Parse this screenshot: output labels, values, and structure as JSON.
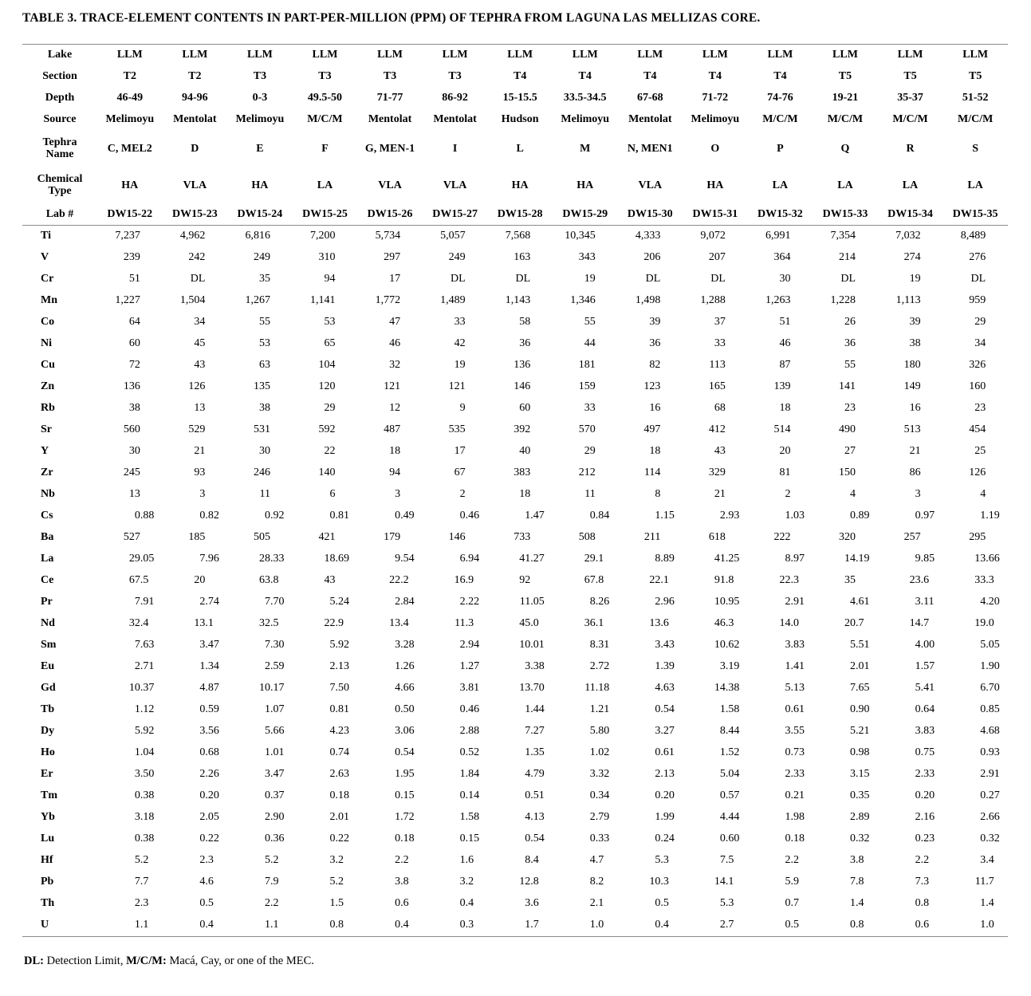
{
  "title": "TABLE 3. TRACE-ELEMENT CONTENTS IN PART-PER-MILLION (PPM) OF TEPHRA FROM LAGUNA LAS MELLIZAS CORE.",
  "table": {
    "header_rows": [
      {
        "label": "Lake",
        "values": [
          "LLM",
          "LLM",
          "LLM",
          "LLM",
          "LLM",
          "LLM",
          "LLM",
          "LLM",
          "LLM",
          "LLM",
          "LLM",
          "LLM",
          "LLM",
          "LLM"
        ]
      },
      {
        "label": "Section",
        "values": [
          "T2",
          "T2",
          "T3",
          "T3",
          "T3",
          "T3",
          "T4",
          "T4",
          "T4",
          "T4",
          "T4",
          "T5",
          "T5",
          "T5"
        ]
      },
      {
        "label": "Depth",
        "values": [
          "46-49",
          "94-96",
          "0-3",
          "49.5-50",
          "71-77",
          "86-92",
          "15-15.5",
          "33.5-34.5",
          "67-68",
          "71-72",
          "74-76",
          "19-21",
          "35-37",
          "51-52"
        ]
      },
      {
        "label": "Source",
        "values": [
          "Melimoyu",
          "Mentolat",
          "Melimoyu",
          "M/C/M",
          "Mentolat",
          "Mentolat",
          "Hudson",
          "Melimoyu",
          "Mentolat",
          "Melimoyu",
          "M/C/M",
          "M/C/M",
          "M/C/M",
          "M/C/M"
        ]
      },
      {
        "label": "Tephra\nName",
        "tall": true,
        "values": [
          "C, MEL2",
          "D",
          "E",
          "F",
          "G, MEN-1",
          "I",
          "L",
          "M",
          "N, MEN1",
          "O",
          "P",
          "Q",
          "R",
          "S"
        ]
      },
      {
        "label": "Chemical\nType",
        "tall": true,
        "values": [
          "HA",
          "VLA",
          "HA",
          "LA",
          "VLA",
          "VLA",
          "HA",
          "HA",
          "VLA",
          "HA",
          "LA",
          "LA",
          "LA",
          "LA"
        ]
      },
      {
        "label": "Lab #",
        "labrow": true,
        "values": [
          "DW15-22",
          "DW15-23",
          "DW15-24",
          "DW15-25",
          "DW15-26",
          "DW15-27",
          "DW15-28",
          "DW15-29",
          "DW15-30",
          "DW15-31",
          "DW15-32",
          "DW15-33",
          "DW15-34",
          "DW15-35"
        ]
      }
    ],
    "element_rows": [
      {
        "label": "Ti",
        "values": [
          "7,237",
          "4,962",
          "6,816",
          "7,200",
          "5,734",
          "5,057",
          "7,568",
          "10,345",
          "4,333",
          "9,072",
          "6,991",
          "7,354",
          "7,032",
          "8,489"
        ]
      },
      {
        "label": "V",
        "values": [
          "239",
          "242",
          "249",
          "310",
          "297",
          "249",
          "163",
          "343",
          "206",
          "207",
          "364",
          "214",
          "274",
          "276"
        ]
      },
      {
        "label": "Cr",
        "values": [
          "51",
          "DL",
          "35",
          "94",
          "17",
          "DL",
          "DL",
          "19",
          "DL",
          "DL",
          "30",
          "DL",
          "19",
          "DL"
        ]
      },
      {
        "label": "Mn",
        "values": [
          "1,227",
          "1,504",
          "1,267",
          "1,141",
          "1,772",
          "1,489",
          "1,143",
          "1,346",
          "1,498",
          "1,288",
          "1,263",
          "1,228",
          "1,113",
          "959"
        ]
      },
      {
        "label": "Co",
        "values": [
          "64",
          "34",
          "55",
          "53",
          "47",
          "33",
          "58",
          "55",
          "39",
          "37",
          "51",
          "26",
          "39",
          "29"
        ]
      },
      {
        "label": "Ni",
        "values": [
          "60",
          "45",
          "53",
          "65",
          "46",
          "42",
          "36",
          "44",
          "36",
          "33",
          "46",
          "36",
          "38",
          "34"
        ]
      },
      {
        "label": "Cu",
        "values": [
          "72",
          "43",
          "63",
          "104",
          "32",
          "19",
          "136",
          "181",
          "82",
          "113",
          "87",
          "55",
          "180",
          "326"
        ]
      },
      {
        "label": "Zn",
        "values": [
          "136",
          "126",
          "135",
          "120",
          "121",
          "121",
          "146",
          "159",
          "123",
          "165",
          "139",
          "141",
          "149",
          "160"
        ]
      },
      {
        "label": "Rb",
        "values": [
          "38",
          "13",
          "38",
          "29",
          "12",
          "9",
          "60",
          "33",
          "16",
          "68",
          "18",
          "23",
          "16",
          "23"
        ]
      },
      {
        "label": "Sr",
        "values": [
          "560",
          "529",
          "531",
          "592",
          "487",
          "535",
          "392",
          "570",
          "497",
          "412",
          "514",
          "490",
          "513",
          "454"
        ]
      },
      {
        "label": "Y",
        "values": [
          "30",
          "21",
          "30",
          "22",
          "18",
          "17",
          "40",
          "29",
          "18",
          "43",
          "20",
          "27",
          "21",
          "25"
        ]
      },
      {
        "label": "Zr",
        "values": [
          "245",
          "93",
          "246",
          "140",
          "94",
          "67",
          "383",
          "212",
          "114",
          "329",
          "81",
          "150",
          "86",
          "126"
        ]
      },
      {
        "label": "Nb",
        "values": [
          "13",
          "3",
          "11",
          "6",
          "3",
          "2",
          "18",
          "11",
          "8",
          "21",
          "2",
          "4",
          "3",
          "4"
        ]
      },
      {
        "label": "Cs",
        "values": [
          "0.88",
          "0.82",
          "0.92",
          "0.81",
          "0.49",
          "0.46",
          "1.47",
          "0.84",
          "1.15",
          "2.93",
          "1.03",
          "0.89",
          "0.97",
          "1.19"
        ]
      },
      {
        "label": "Ba",
        "values": [
          "527",
          "185",
          "505",
          "421",
          "179",
          "146",
          "733",
          "508",
          "211",
          "618",
          "222",
          "320",
          "257",
          "295"
        ]
      },
      {
        "label": "La",
        "values": [
          "29.05",
          "7.96",
          "28.33",
          "18.69",
          "9.54",
          "6.94",
          "41.27",
          "29.1",
          "8.89",
          "41.25",
          "8.97",
          "14.19",
          "9.85",
          "13.66"
        ]
      },
      {
        "label": "Ce",
        "values": [
          "67.5",
          "20",
          "63.8",
          "43",
          "22.2",
          "16.9",
          "92",
          "67.8",
          "22.1",
          "91.8",
          "22.3",
          "35",
          "23.6",
          "33.3"
        ]
      },
      {
        "label": "Pr",
        "values": [
          "7.91",
          "2.74",
          "7.70",
          "5.24",
          "2.84",
          "2.22",
          "11.05",
          "8.26",
          "2.96",
          "10.95",
          "2.91",
          "4.61",
          "3.11",
          "4.20"
        ]
      },
      {
        "label": "Nd",
        "values": [
          "32.4",
          "13.1",
          "32.5",
          "22.9",
          "13.4",
          "11.3",
          "45.0",
          "36.1",
          "13.6",
          "46.3",
          "14.0",
          "20.7",
          "14.7",
          "19.0"
        ]
      },
      {
        "label": "Sm",
        "values": [
          "7.63",
          "3.47",
          "7.30",
          "5.92",
          "3.28",
          "2.94",
          "10.01",
          "8.31",
          "3.43",
          "10.62",
          "3.83",
          "5.51",
          "4.00",
          "5.05"
        ]
      },
      {
        "label": "Eu",
        "values": [
          "2.71",
          "1.34",
          "2.59",
          "2.13",
          "1.26",
          "1.27",
          "3.38",
          "2.72",
          "1.39",
          "3.19",
          "1.41",
          "2.01",
          "1.57",
          "1.90"
        ]
      },
      {
        "label": "Gd",
        "values": [
          "10.37",
          "4.87",
          "10.17",
          "7.50",
          "4.66",
          "3.81",
          "13.70",
          "11.18",
          "4.63",
          "14.38",
          "5.13",
          "7.65",
          "5.41",
          "6.70"
        ]
      },
      {
        "label": "Tb",
        "values": [
          "1.12",
          "0.59",
          "1.07",
          "0.81",
          "0.50",
          "0.46",
          "1.44",
          "1.21",
          "0.54",
          "1.58",
          "0.61",
          "0.90",
          "0.64",
          "0.85"
        ]
      },
      {
        "label": "Dy",
        "values": [
          "5.92",
          "3.56",
          "5.66",
          "4.23",
          "3.06",
          "2.88",
          "7.27",
          "5.80",
          "3.27",
          "8.44",
          "3.55",
          "5.21",
          "3.83",
          "4.68"
        ]
      },
      {
        "label": "Ho",
        "values": [
          "1.04",
          "0.68",
          "1.01",
          "0.74",
          "0.54",
          "0.52",
          "1.35",
          "1.02",
          "0.61",
          "1.52",
          "0.73",
          "0.98",
          "0.75",
          "0.93"
        ]
      },
      {
        "label": "Er",
        "values": [
          "3.50",
          "2.26",
          "3.47",
          "2.63",
          "1.95",
          "1.84",
          "4.79",
          "3.32",
          "2.13",
          "5.04",
          "2.33",
          "3.15",
          "2.33",
          "2.91"
        ]
      },
      {
        "label": "Tm",
        "values": [
          "0.38",
          "0.20",
          "0.37",
          "0.18",
          "0.15",
          "0.14",
          "0.51",
          "0.34",
          "0.20",
          "0.57",
          "0.21",
          "0.35",
          "0.20",
          "0.27"
        ]
      },
      {
        "label": "Yb",
        "values": [
          "3.18",
          "2.05",
          "2.90",
          "2.01",
          "1.72",
          "1.58",
          "4.13",
          "2.79",
          "1.99",
          "4.44",
          "1.98",
          "2.89",
          "2.16",
          "2.66"
        ]
      },
      {
        "label": "Lu",
        "values": [
          "0.38",
          "0.22",
          "0.36",
          "0.22",
          "0.18",
          "0.15",
          "0.54",
          "0.33",
          "0.24",
          "0.60",
          "0.18",
          "0.32",
          "0.23",
          "0.32"
        ]
      },
      {
        "label": "Hf",
        "values": [
          "5.2",
          "2.3",
          "5.2",
          "3.2",
          "2.2",
          "1.6",
          "8.4",
          "4.7",
          "5.3",
          "7.5",
          "2.2",
          "3.8",
          "2.2",
          "3.4"
        ]
      },
      {
        "label": "Pb",
        "values": [
          "7.7",
          "4.6",
          "7.9",
          "5.2",
          "3.8",
          "3.2",
          "12.8",
          "8.2",
          "10.3",
          "14.1",
          "5.9",
          "7.8",
          "7.3",
          "11.7"
        ]
      },
      {
        "label": "Th",
        "values": [
          "2.3",
          "0.5",
          "2.2",
          "1.5",
          "0.6",
          "0.4",
          "3.6",
          "2.1",
          "0.5",
          "5.3",
          "0.7",
          "1.4",
          "0.8",
          "1.4"
        ]
      },
      {
        "label": "U",
        "values": [
          "1.1",
          "0.4",
          "1.1",
          "0.8",
          "0.4",
          "0.3",
          "1.7",
          "1.0",
          "0.4",
          "2.7",
          "0.5",
          "0.8",
          "0.6",
          "1.0"
        ]
      }
    ]
  },
  "footnote": {
    "dl_term": "DL:",
    "dl_text": " Detection Limit, ",
    "mcm_term": "M/C/M:",
    "mcm_text": " Macá, Cay, or one of the MEC."
  }
}
